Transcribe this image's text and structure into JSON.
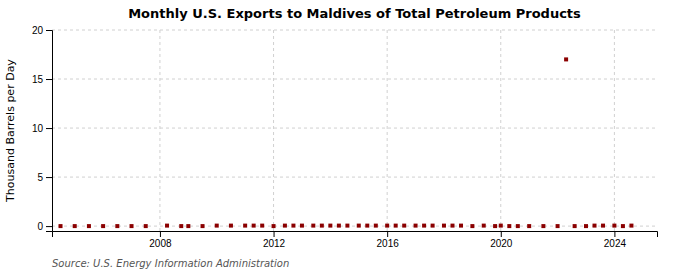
{
  "chart_data": {
    "type": "scatter",
    "title": "Monthly U.S. Exports to Maldives of Total Petroleum Products",
    "y_label": "Thousand Barrels per Day",
    "annotation": "Source: U.S. Energy Information Administration",
    "x": [
      2004.5,
      2005.0,
      2005.5,
      2006.0,
      2006.5,
      2007.0,
      2007.5,
      2008.25,
      2008.75,
      2009.0,
      2009.5,
      2010.0,
      2010.5,
      2011.0,
      2011.3,
      2011.6,
      2012.0,
      2012.4,
      2012.7,
      2013.0,
      2013.4,
      2013.7,
      2014.0,
      2014.3,
      2014.6,
      2015.0,
      2015.3,
      2015.6,
      2016.0,
      2016.3,
      2016.6,
      2017.0,
      2017.3,
      2017.6,
      2018.0,
      2018.3,
      2018.6,
      2019.0,
      2019.4,
      2019.8,
      2020.0,
      2020.3,
      2020.6,
      2021.0,
      2021.5,
      2022.0,
      2022.3,
      2022.6,
      2023.0,
      2023.3,
      2023.6,
      2024.0,
      2024.3,
      2024.6
    ],
    "values": [
      0.0,
      0.0,
      0.0,
      0.0,
      0.0,
      0.0,
      0.0,
      0.05,
      0.0,
      0.0,
      0.0,
      0.05,
      0.05,
      0.05,
      0.05,
      0.05,
      0.0,
      0.05,
      0.05,
      0.05,
      0.05,
      0.05,
      0.05,
      0.05,
      0.05,
      0.05,
      0.05,
      0.05,
      0.05,
      0.05,
      0.05,
      0.05,
      0.05,
      0.05,
      0.05,
      0.05,
      0.05,
      0.0,
      0.05,
      0.0,
      0.05,
      0.0,
      0.0,
      0.0,
      0.0,
      0.0,
      17.0,
      0.0,
      0.0,
      0.05,
      0.05,
      0.05,
      0.0,
      0.05
    ],
    "color": "#8b0000",
    "marker": "square",
    "xlim": [
      2004.2,
      2025.5
    ],
    "xticks": [
      2008,
      2012,
      2016,
      2020,
      2024
    ],
    "ylim": [
      -0.5,
      20
    ],
    "yticks": [
      0,
      5,
      10,
      15,
      20
    ],
    "grid": true
  }
}
